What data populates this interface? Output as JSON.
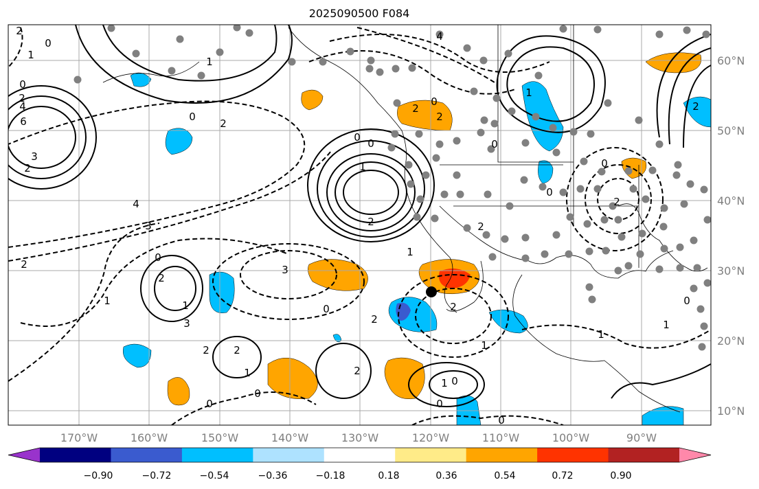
{
  "title": "2025090500 F084",
  "lat_labels": [
    "60°N",
    "50°N",
    "40°N",
    "30°N",
    "20°N",
    "10°N"
  ],
  "lon_labels": [
    "170°W",
    "160°W",
    "150°W",
    "140°W",
    "130°W",
    "120°W",
    "110°W",
    "100°W",
    "90°W"
  ],
  "colorbar": {
    "ticks": [
      "−0.90",
      "−0.72",
      "−0.54",
      "−0.36",
      "−0.18",
      "0.18",
      "0.36",
      "0.54",
      "0.72",
      "0.90"
    ],
    "colors": [
      "#9933cc",
      "#000080",
      "#3a5bcf",
      "#00bfff",
      "#aee2ff",
      "#ffffff",
      "#ffeb88",
      "#ffa500",
      "#ff3300",
      "#b22222",
      "#ff88aa"
    ]
  },
  "contour_labels": [
    "2",
    "0",
    "1",
    "0",
    "2",
    "4",
    "6",
    "3",
    "2",
    "1",
    "0",
    "2",
    "0",
    "0",
    "1",
    "2",
    "4",
    "3",
    "2",
    "1",
    "0",
    "2",
    "1",
    "3",
    "2",
    "2",
    "1",
    "2",
    "0",
    "0",
    "1",
    "2",
    "0",
    "1",
    "0",
    "1",
    "2",
    "2",
    "0",
    "1",
    "0",
    "0",
    "2",
    "0",
    "1",
    "1",
    "0",
    "0",
    "2",
    "2",
    "3",
    "0",
    "4",
    "2"
  ],
  "colors": {
    "dots": "#808080",
    "grid": "#a8a8a8",
    "label_gray": "#7f7f7f",
    "marker": "#000000"
  }
}
